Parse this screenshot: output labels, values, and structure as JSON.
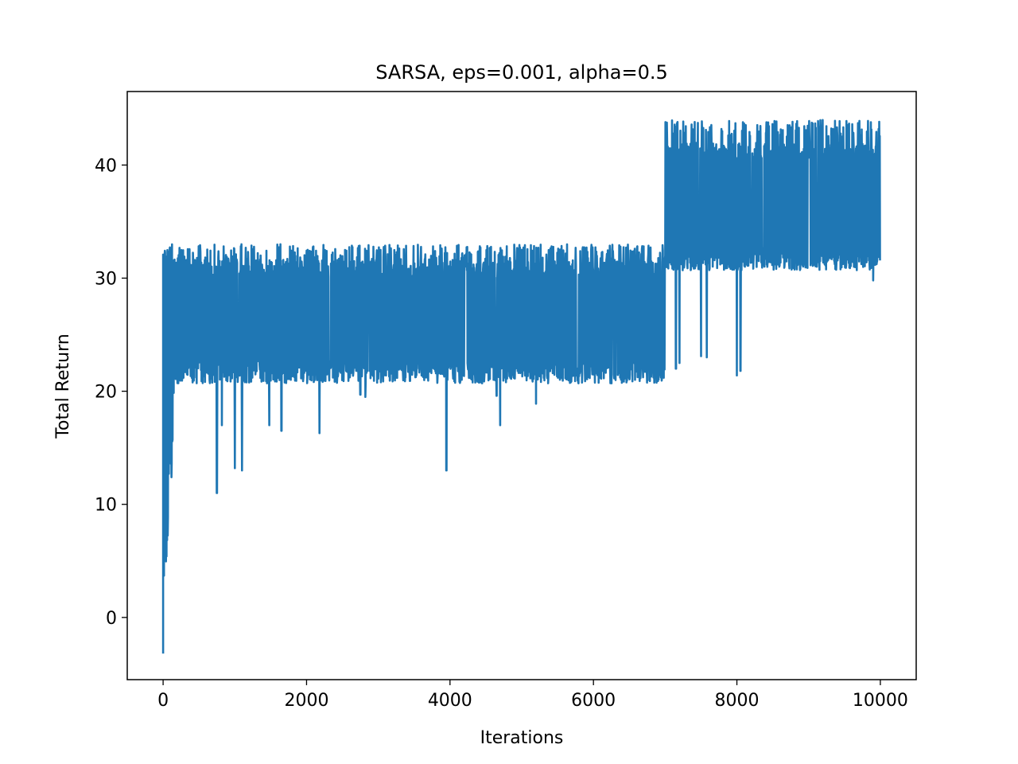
{
  "chart_data": {
    "type": "line",
    "title": "SARSA, eps=0.001, alpha=0.5",
    "xlabel": "Iterations",
    "ylabel": "Total Return",
    "xlim": [
      -500,
      10500
    ],
    "ylim": [
      -5.5,
      46.5
    ],
    "xticks": [
      0,
      2000,
      4000,
      6000,
      8000,
      10000
    ],
    "yticks": [
      0,
      10,
      20,
      30,
      40
    ],
    "grid": false,
    "legend": "none",
    "series": [
      {
        "color": "#1f77b4",
        "n_points": 10000,
        "phases": [
          {
            "x_range": [
              0,
              150
            ],
            "min": -3.2,
            "max": 33,
            "note": "initial learning"
          },
          {
            "x_range": [
              150,
              7000
            ],
            "min": 20.7,
            "max": 33,
            "common_upper": 31.5
          },
          {
            "x_range": [
              7000,
              10000
            ],
            "min": 30.7,
            "max": 44,
            "common_upper": 42
          }
        ],
        "dips": [
          {
            "x": 750,
            "y": 11
          },
          {
            "x": 820,
            "y": 17
          },
          {
            "x": 1000,
            "y": 13.2
          },
          {
            "x": 1100,
            "y": 13
          },
          {
            "x": 1480,
            "y": 17
          },
          {
            "x": 1650,
            "y": 16.5
          },
          {
            "x": 2180,
            "y": 16.3
          },
          {
            "x": 2750,
            "y": 19.7
          },
          {
            "x": 2820,
            "y": 19.5
          },
          {
            "x": 3950,
            "y": 13
          },
          {
            "x": 4650,
            "y": 19.6
          },
          {
            "x": 4700,
            "y": 17
          },
          {
            "x": 5200,
            "y": 18.9
          },
          {
            "x": 6900,
            "y": 20.9
          },
          {
            "x": 7150,
            "y": 22
          },
          {
            "x": 7200,
            "y": 22.5
          },
          {
            "x": 7500,
            "y": 23.1
          },
          {
            "x": 7580,
            "y": 23
          },
          {
            "x": 8000,
            "y": 21.4
          },
          {
            "x": 8050,
            "y": 21.8
          },
          {
            "x": 9900,
            "y": 29.8
          }
        ]
      }
    ]
  }
}
